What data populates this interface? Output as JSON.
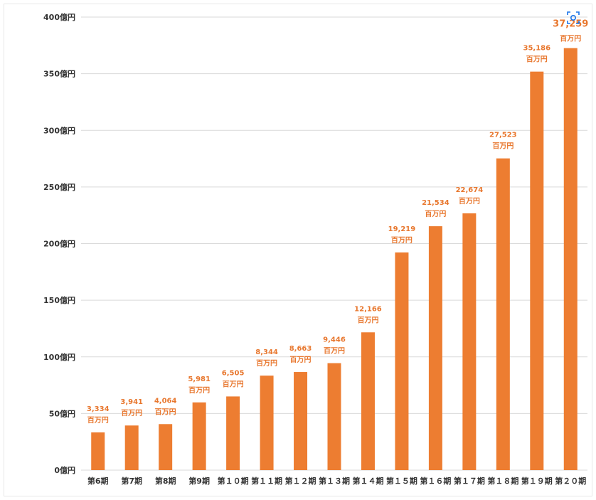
{
  "colors": {
    "bar": "#ED7D31",
    "label": "#E8772E",
    "grid": "#d9d9d9",
    "axis_text": "#333333"
  },
  "icons": {
    "corner": "lens-icon"
  },
  "chart_data": {
    "type": "bar",
    "title": "",
    "xlabel": "",
    "ylabel": "",
    "ylim": [
      0,
      400
    ],
    "y_ticks": [
      {
        "value": 0,
        "label": "0億円"
      },
      {
        "value": 50,
        "label": "50億円"
      },
      {
        "value": 100,
        "label": "100億円"
      },
      {
        "value": 150,
        "label": "150億円"
      },
      {
        "value": 200,
        "label": "200億円"
      },
      {
        "value": 250,
        "label": "250億円"
      },
      {
        "value": 300,
        "label": "300億円"
      },
      {
        "value": 350,
        "label": "350億円"
      },
      {
        "value": 400,
        "label": "400億円"
      }
    ],
    "grid": true,
    "legend": "none",
    "categories": [
      "第6期",
      "第7期",
      "第8期",
      "第9期",
      "第１０期",
      "第１１期",
      "第１２期",
      "第１３期",
      "第１４期",
      "第１５期",
      "第１６期",
      "第１７期",
      "第１８期",
      "第１９期",
      "第２０期"
    ],
    "values_million_yen": [
      3334,
      3941,
      4064,
      5981,
      6505,
      8344,
      8663,
      9446,
      12166,
      19219,
      21534,
      22674,
      27523,
      35186,
      37259
    ],
    "data_labels": [
      "3,334",
      "3,941",
      "4,064",
      "5,981",
      "6,505",
      "8,344",
      "8,663",
      "9,446",
      "12,166",
      "19,219",
      "21,534",
      "22,674",
      "27,523",
      "35,186",
      "37,259"
    ],
    "data_label_unit": "百万円"
  }
}
